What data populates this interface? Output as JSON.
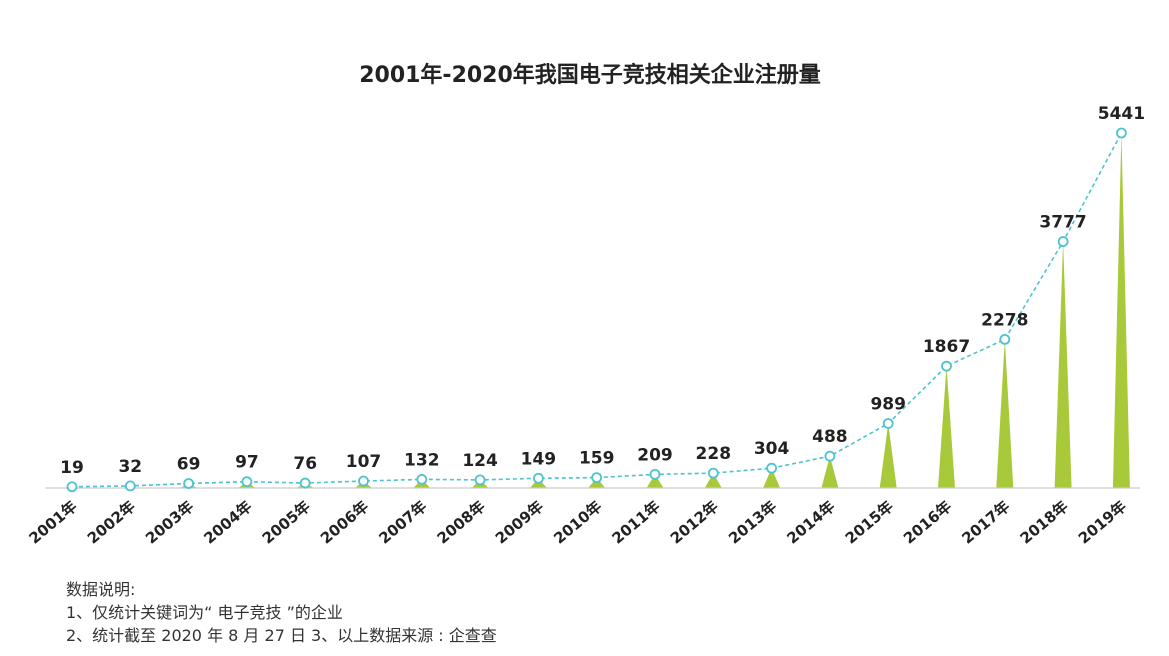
{
  "chart_data": {
    "type": "bar",
    "title": "2001年-2020年我国电子竞技相关企业注册量",
    "categories": [
      "2001年",
      "2002年",
      "2003年",
      "2004年",
      "2005年",
      "2006年",
      "2007年",
      "2008年",
      "2009年",
      "2010年",
      "2011年",
      "2012年",
      "2013年",
      "2014年",
      "2015年",
      "2016年",
      "2017年",
      "2018年",
      "2019年"
    ],
    "values": [
      19,
      32,
      69,
      97,
      76,
      107,
      132,
      124,
      149,
      159,
      209,
      228,
      304,
      488,
      989,
      1867,
      2278,
      3777,
      5441
    ],
    "ylim": [
      0,
      5441
    ],
    "bar_shape": "triangle",
    "overlay": "dashed-line-with-circle-markers",
    "grid": false,
    "legend": "none",
    "colors": {
      "bar": "#a8c93a",
      "line": "#4cc3cf",
      "marker_fill": "#ffffff",
      "baseline": "#cccccc",
      "text": "#222222"
    }
  },
  "notes": {
    "heading": "数据说明:",
    "line1": "1、仅统计关键词为“ 电子竞技 ”的企业",
    "line2": "2、统计截至 2020 年 8 月 27 日  3、以上数据来源 : 企查查"
  }
}
